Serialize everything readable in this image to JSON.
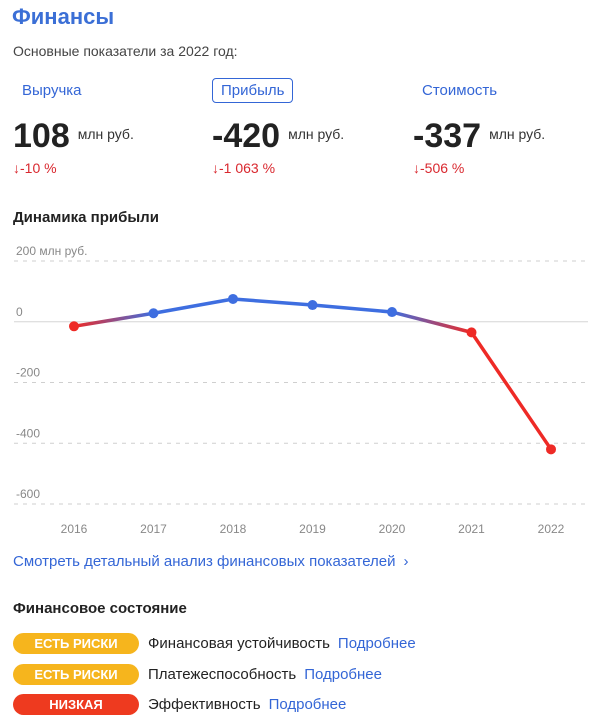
{
  "header": {
    "title": "Финансы",
    "subtitle": "Основные показатели за 2022 год:"
  },
  "metrics": [
    {
      "tab": "Выручка",
      "value": "108",
      "unit": "млн руб.",
      "change": "↓-10 %"
    },
    {
      "tab": "Прибыль",
      "value": "-420",
      "unit": "млн руб.",
      "change": "↓-1 063 %"
    },
    {
      "tab": "Стоимость",
      "value": "-337",
      "unit": "млн руб.",
      "change": "↓-506 %"
    }
  ],
  "colors": {
    "accent": "#3466d6",
    "up_line": "#3e6ee0",
    "down_line": "#ee2a26",
    "risk": "#f6b51d",
    "low": "#ee3a1f"
  },
  "dynamics": {
    "title": "Динамика прибыли"
  },
  "chart_data": {
    "type": "line",
    "x": [
      "2016",
      "2017",
      "2018",
      "2019",
      "2020",
      "2021",
      "2022"
    ],
    "values": [
      -15,
      28,
      75,
      55,
      32,
      -35,
      -420
    ],
    "ylim": [
      -600,
      200
    ],
    "yticks": [
      200,
      0,
      -200,
      -400,
      -600
    ],
    "ytick_labels": [
      "200 млн руб.",
      "0",
      "-200",
      "-400",
      "-600"
    ],
    "grid": true
  },
  "details_link": {
    "label": "Смотреть детальный анализ финансовых показателей",
    "chevron": "›"
  },
  "state": {
    "title": "Финансовое состояние",
    "rows": [
      {
        "badge": "ЕСТЬ РИСКИ",
        "badge_level": "risk",
        "label": "Финансовая устойчивость",
        "more": "Подробнее"
      },
      {
        "badge": "ЕСТЬ РИСКИ",
        "badge_level": "risk",
        "label": "Платежеспособность",
        "more": "Подробнее"
      },
      {
        "badge": "НИЗКАЯ",
        "badge_level": "low",
        "label": "Эффективность",
        "more": "Подробнее"
      }
    ]
  }
}
